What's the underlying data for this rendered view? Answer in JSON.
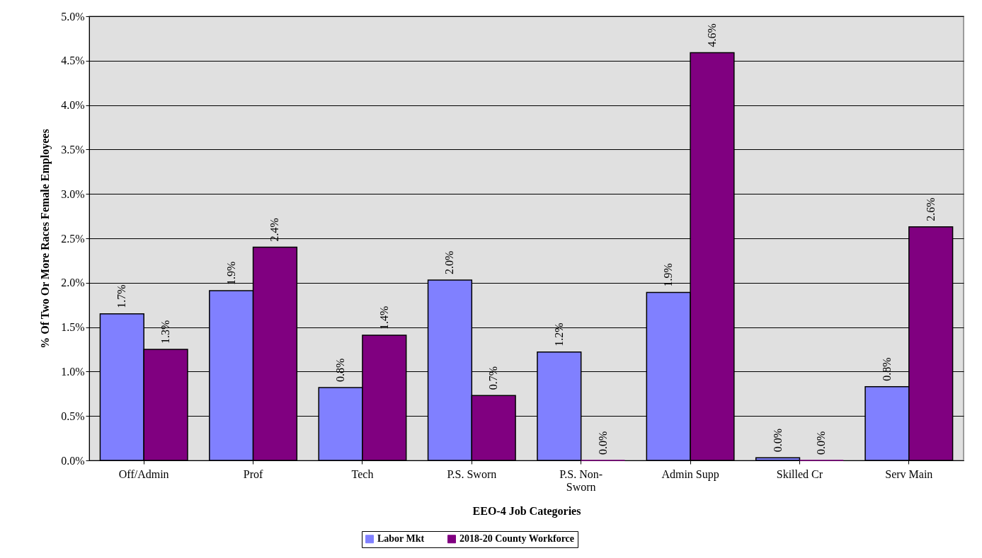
{
  "chart_data": {
    "type": "bar",
    "xlabel": "EEO-4 Job Categories",
    "ylabel": "% Of Two Or More Races Female Employees",
    "categories": [
      "Off/Admin",
      "Prof",
      "Tech",
      "P.S. Sworn",
      "P.S. Non-Sworn",
      "Admin Supp",
      "Skilled Cr",
      "Serv Main"
    ],
    "series": [
      {
        "name": "Labor Mkt",
        "color": "#8080ff",
        "values": [
          1.65,
          1.91,
          0.82,
          2.03,
          1.22,
          1.89,
          0.03,
          0.83
        ],
        "value_labels": [
          "1.7%",
          "1.9%",
          "0.8%",
          "2.0%",
          "1.2%",
          "1.9%",
          "0.0%",
          "0.8%"
        ]
      },
      {
        "name": "2018-20 County Workforce",
        "color": "#800080",
        "values": [
          1.25,
          2.4,
          1.41,
          0.73,
          0.0,
          4.59,
          0.0,
          2.63
        ],
        "value_labels": [
          "1.3%",
          "2.4%",
          "1.4%",
          "0.7%",
          "0.0%",
          "4.6%",
          "0.0%",
          "2.6%"
        ]
      }
    ],
    "ylim": [
      0,
      5
    ],
    "yticks": [
      {
        "value": 0,
        "label": "0.0%"
      },
      {
        "value": 0.5,
        "label": "0.5%"
      },
      {
        "value": 1,
        "label": "1.0%"
      },
      {
        "value": 1.5,
        "label": "1.5%"
      },
      {
        "value": 2,
        "label": "2.0%"
      },
      {
        "value": 2.5,
        "label": "2.5%"
      },
      {
        "value": 3,
        "label": "3.0%"
      },
      {
        "value": 3.5,
        "label": "3.5%"
      },
      {
        "value": 4,
        "label": "4.0%"
      },
      {
        "value": 4.5,
        "label": "4.5%"
      },
      {
        "value": 5,
        "label": "5.0%"
      }
    ],
    "grid": "y",
    "legend": "bottom"
  }
}
